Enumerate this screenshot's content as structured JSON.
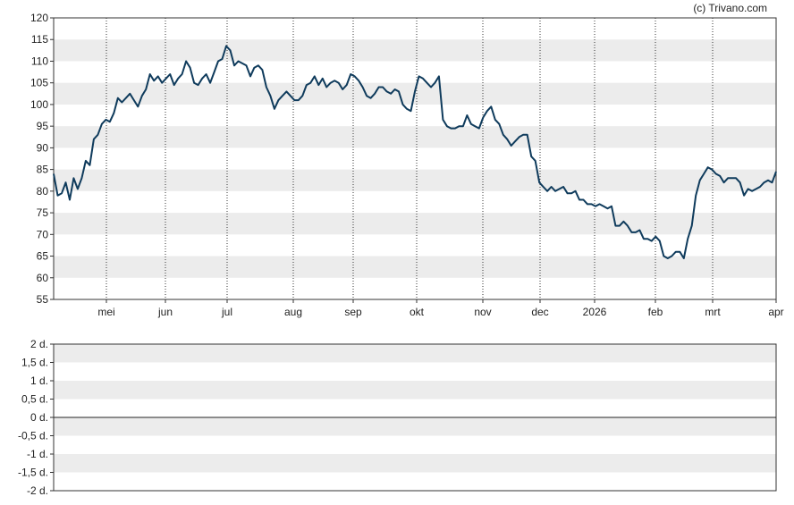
{
  "credit": "(c) Trivano.com",
  "chart_data": [
    {
      "type": "line",
      "y_ticks": [
        "120",
        "115",
        "110",
        "105",
        "100",
        "95",
        "90",
        "85",
        "80",
        "75",
        "70",
        "65",
        "60",
        "55"
      ],
      "ylim": [
        55,
        120
      ],
      "x_ticks": [
        "mei",
        "jun",
        "jul",
        "aug",
        "sep",
        "okt",
        "nov",
        "dec",
        "2026",
        "feb",
        "mrt",
        "apr"
      ],
      "grid": "alternating bands, dotted month lines",
      "line_color": "#0f3b5c",
      "series": [
        {
          "values": [
            [
              0,
              84
            ],
            [
              1,
              79
            ],
            [
              2,
              79.5
            ],
            [
              3,
              82
            ],
            [
              4,
              78
            ],
            [
              5,
              83
            ],
            [
              6,
              80.5
            ],
            [
              7,
              83
            ],
            [
              8,
              87
            ],
            [
              9,
              86
            ],
            [
              10,
              92
            ],
            [
              11,
              93
            ],
            [
              12,
              95.5
            ],
            [
              13,
              96.5
            ],
            [
              14,
              96
            ],
            [
              15,
              98
            ],
            [
              16,
              101.5
            ],
            [
              17,
              100.5
            ],
            [
              18,
              101.5
            ],
            [
              19,
              102.5
            ],
            [
              20,
              101
            ],
            [
              21,
              99.5
            ],
            [
              22,
              102
            ],
            [
              23,
              103.5
            ],
            [
              24,
              107
            ],
            [
              25,
              105.5
            ],
            [
              26,
              106.5
            ],
            [
              27,
              105
            ],
            [
              28,
              106
            ],
            [
              29,
              107
            ],
            [
              30,
              104.5
            ],
            [
              31,
              106
            ],
            [
              32,
              107
            ],
            [
              33,
              110
            ],
            [
              34,
              108.5
            ],
            [
              35,
              105
            ],
            [
              36,
              104.5
            ],
            [
              37,
              106
            ],
            [
              38,
              107
            ],
            [
              39,
              105
            ],
            [
              40,
              107.5
            ],
            [
              41,
              110
            ],
            [
              42,
              110.5
            ],
            [
              43,
              113.5
            ],
            [
              44,
              112.5
            ],
            [
              45,
              109
            ],
            [
              46,
              110
            ],
            [
              47,
              109.5
            ],
            [
              48,
              109
            ],
            [
              49,
              106.5
            ],
            [
              50,
              108.5
            ],
            [
              51,
              109
            ],
            [
              52,
              108
            ],
            [
              53,
              104
            ],
            [
              54,
              102
            ],
            [
              55,
              99
            ],
            [
              56,
              101
            ],
            [
              57,
              102
            ],
            [
              58,
              103
            ],
            [
              59,
              102
            ],
            [
              60,
              101
            ],
            [
              61,
              101
            ],
            [
              62,
              102
            ],
            [
              63,
              104.5
            ],
            [
              64,
              105
            ],
            [
              65,
              106.5
            ],
            [
              66,
              104.5
            ],
            [
              67,
              106
            ],
            [
              68,
              104
            ],
            [
              69,
              105
            ],
            [
              70,
              105.5
            ],
            [
              71,
              105
            ],
            [
              72,
              103.5
            ],
            [
              73,
              104.5
            ],
            [
              74,
              107
            ],
            [
              75,
              106.5
            ],
            [
              76,
              105.5
            ],
            [
              77,
              104
            ],
            [
              78,
              102
            ],
            [
              79,
              101.5
            ],
            [
              80,
              102.5
            ],
            [
              81,
              104
            ],
            [
              82,
              104
            ],
            [
              83,
              103
            ],
            [
              84,
              102.5
            ],
            [
              85,
              103.5
            ],
            [
              86,
              103
            ],
            [
              87,
              100
            ],
            [
              88,
              99
            ],
            [
              89,
              98.5
            ],
            [
              90,
              103
            ],
            [
              91,
              106.5
            ],
            [
              92,
              106
            ],
            [
              93,
              105
            ],
            [
              94,
              104
            ],
            [
              95,
              105
            ],
            [
              96,
              106.5
            ],
            [
              97,
              96.5
            ],
            [
              98,
              95
            ],
            [
              99,
              94.5
            ],
            [
              100,
              94.5
            ],
            [
              101,
              95
            ],
            [
              102,
              95
            ],
            [
              103,
              97.5
            ],
            [
              104,
              95.5
            ],
            [
              105,
              95
            ],
            [
              106,
              94.5
            ],
            [
              107,
              97
            ],
            [
              108,
              98.5
            ],
            [
              109,
              99.5
            ],
            [
              110,
              96.5
            ],
            [
              111,
              95.5
            ],
            [
              112,
              93
            ],
            [
              113,
              92
            ],
            [
              114,
              90.5
            ],
            [
              115,
              91.5
            ],
            [
              116,
              92.5
            ],
            [
              117,
              93
            ],
            [
              118,
              93
            ],
            [
              119,
              88
            ],
            [
              120,
              87
            ],
            [
              121,
              82
            ],
            [
              122,
              81
            ],
            [
              123,
              80
            ],
            [
              124,
              81
            ],
            [
              125,
              80
            ],
            [
              126,
              80.5
            ],
            [
              127,
              81
            ],
            [
              128,
              79.5
            ],
            [
              129,
              79.5
            ],
            [
              130,
              80
            ],
            [
              131,
              78
            ],
            [
              132,
              78
            ],
            [
              133,
              77
            ],
            [
              134,
              77
            ],
            [
              135,
              76.5
            ],
            [
              136,
              77
            ],
            [
              137,
              76.5
            ],
            [
              138,
              76
            ],
            [
              139,
              76.5
            ],
            [
              140,
              72
            ],
            [
              141,
              72
            ],
            [
              142,
              73
            ],
            [
              143,
              72
            ],
            [
              144,
              70.5
            ],
            [
              145,
              70.5
            ],
            [
              146,
              71
            ],
            [
              147,
              69
            ],
            [
              148,
              69
            ],
            [
              149,
              68.5
            ],
            [
              150,
              69.5
            ],
            [
              151,
              68.5
            ],
            [
              152,
              65
            ],
            [
              153,
              64.5
            ],
            [
              154,
              65
            ],
            [
              155,
              66
            ],
            [
              156,
              66
            ],
            [
              157,
              64.5
            ],
            [
              158,
              69
            ],
            [
              159,
              72
            ],
            [
              160,
              79
            ],
            [
              161,
              82.5
            ],
            [
              162,
              84
            ],
            [
              163,
              85.5
            ],
            [
              164,
              85
            ],
            [
              165,
              84
            ],
            [
              166,
              83.5
            ],
            [
              167,
              82
            ],
            [
              168,
              83
            ],
            [
              169,
              83
            ],
            [
              170,
              83
            ],
            [
              171,
              82
            ],
            [
              172,
              79
            ],
            [
              173,
              80.5
            ],
            [
              174,
              80
            ],
            [
              175,
              80.5
            ],
            [
              176,
              81
            ],
            [
              177,
              82
            ],
            [
              178,
              82.5
            ],
            [
              179,
              82
            ],
            [
              180,
              84.5
            ]
          ]
        }
      ]
    },
    {
      "type": "line",
      "y_ticks": [
        "2 d.",
        "1,5 d.",
        "1 d.",
        "0,5 d.",
        "0 d.",
        "-0,5 d.",
        "-1 d.",
        "-1,5 d.",
        "-2 d."
      ],
      "ylim": [
        -2,
        2
      ],
      "grid": "alternating bands",
      "series": []
    }
  ]
}
